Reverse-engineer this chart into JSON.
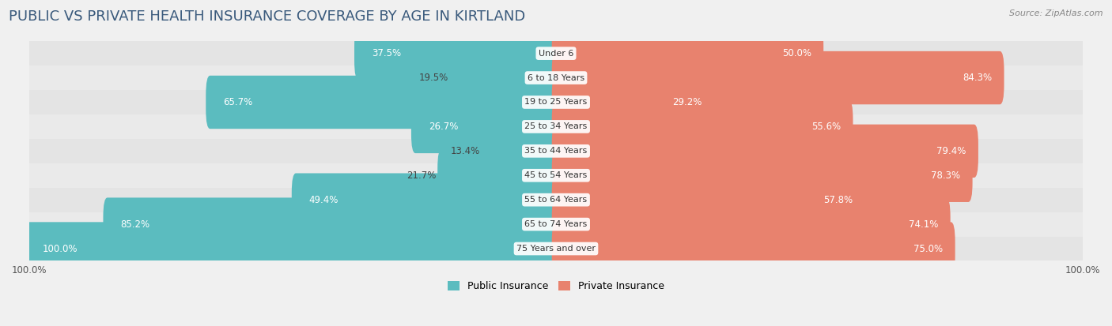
{
  "title": "PUBLIC VS PRIVATE HEALTH INSURANCE COVERAGE BY AGE IN KIRTLAND",
  "source": "Source: ZipAtlas.com",
  "categories": [
    "Under 6",
    "6 to 18 Years",
    "19 to 25 Years",
    "25 to 34 Years",
    "35 to 44 Years",
    "45 to 54 Years",
    "55 to 64 Years",
    "65 to 74 Years",
    "75 Years and over"
  ],
  "public_values": [
    37.5,
    19.5,
    65.7,
    26.7,
    13.4,
    21.7,
    49.4,
    85.2,
    100.0
  ],
  "private_values": [
    50.0,
    84.3,
    29.2,
    55.6,
    79.4,
    78.3,
    57.8,
    74.1,
    75.0
  ],
  "public_color": "#5bbcbf",
  "private_color": "#e8826e",
  "public_color_light": "#a8d8da",
  "private_color_light": "#f0b8aa",
  "bg_color": "#f0f0f0",
  "label_color_white": "#ffffff",
  "label_color_dark": "#444444",
  "axis_max": 100.0,
  "title_fontsize": 13,
  "label_fontsize": 8.5,
  "category_fontsize": 8.0,
  "legend_fontsize": 9,
  "pub_inside_threshold": 25,
  "priv_inside_threshold": 25
}
